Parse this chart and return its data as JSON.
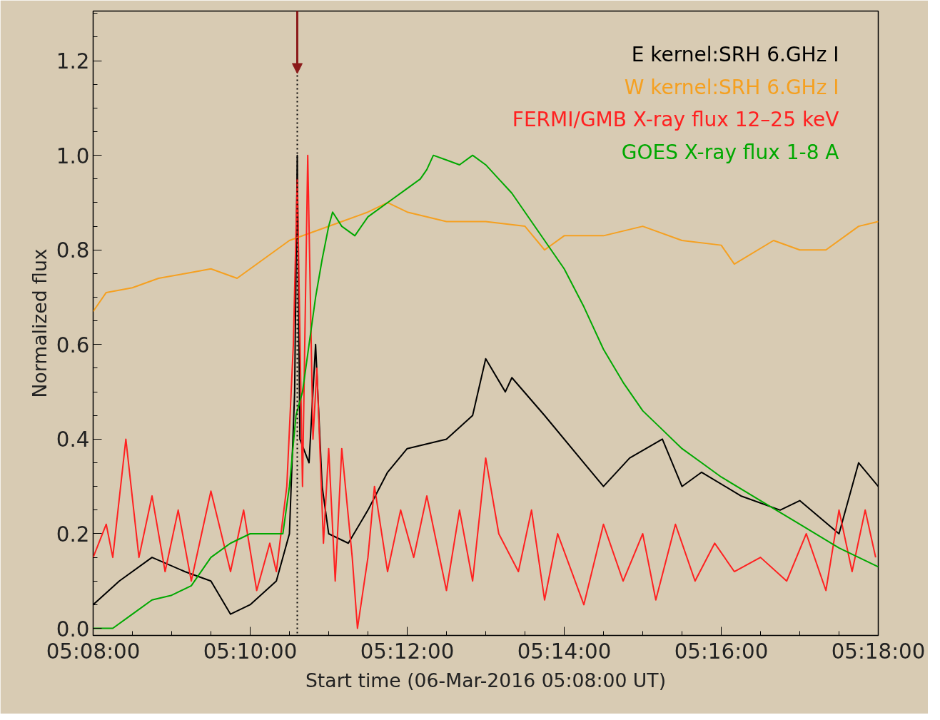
{
  "chart_data": {
    "type": "line",
    "xlabel": "Start time (06-Mar-2016 05:08:00 UT)",
    "ylabel": "Normalized flux",
    "xlim": [
      "2016-03-06T05:08:00",
      "2016-03-06T05:18:00"
    ],
    "xticks": [
      {
        "value": "2016-03-06T05:08:00",
        "label": "05:08:00"
      },
      {
        "value": "2016-03-06T05:10:00",
        "label": "05:10:00"
      },
      {
        "value": "2016-03-06T05:12:00",
        "label": "05:12:00"
      },
      {
        "value": "2016-03-06T05:14:00",
        "label": "05:14:00"
      },
      {
        "value": "2016-03-06T05:16:00",
        "label": "05:16:00"
      },
      {
        "value": "2016-03-06T05:18:00",
        "label": "05:18:00"
      }
    ],
    "ylim": [
      -0.015,
      1.305
    ],
    "yticks": [
      {
        "value": 0,
        "label": "0.0"
      },
      {
        "value": 0.2,
        "label": "0.2"
      },
      {
        "value": 0.4,
        "label": "0.4"
      },
      {
        "value": 0.6,
        "label": "0.6"
      },
      {
        "value": 0.8,
        "label": "0.8"
      },
      {
        "value": 1.0,
        "label": "1.0"
      },
      {
        "value": 1.2,
        "label": "1.2"
      }
    ],
    "legend": "top right",
    "grid": false,
    "line_style": "solid",
    "marker": "none",
    "ref_lines": [
      {
        "axis": "x",
        "value": "2016-03-06T05:10:36",
        "label": null,
        "color": "#000000",
        "line_style": "dotted"
      }
    ],
    "series": [
      {
        "name": "E kernel:SRH 6.GHz I",
        "color": "#000000",
        "x": [
          "2016-03-06T05:08:00",
          "2016-03-06T05:08:20",
          "2016-03-06T05:08:45",
          "2016-03-06T05:09:10",
          "2016-03-06T05:09:30",
          "2016-03-06T05:09:45",
          "2016-03-06T05:10:00",
          "2016-03-06T05:10:20",
          "2016-03-06T05:10:30",
          "2016-03-06T05:10:34",
          "2016-03-06T05:10:36",
          "2016-03-06T05:10:38",
          "2016-03-06T05:10:45",
          "2016-03-06T05:10:50",
          "2016-03-06T05:10:55",
          "2016-03-06T05:11:00",
          "2016-03-06T05:11:15",
          "2016-03-06T05:11:30",
          "2016-03-06T05:11:45",
          "2016-03-06T05:12:00",
          "2016-03-06T05:12:30",
          "2016-03-06T05:12:50",
          "2016-03-06T05:13:00",
          "2016-03-06T05:13:15",
          "2016-03-06T05:13:20",
          "2016-03-06T05:13:45",
          "2016-03-06T05:14:15",
          "2016-03-06T05:14:30",
          "2016-03-06T05:14:50",
          "2016-03-06T05:15:15",
          "2016-03-06T05:15:30",
          "2016-03-06T05:15:45",
          "2016-03-06T05:16:15",
          "2016-03-06T05:16:45",
          "2016-03-06T05:17:00",
          "2016-03-06T05:17:30",
          "2016-03-06T05:17:45",
          "2016-03-06T05:18:00"
        ],
        "values": [
          0.05,
          0.1,
          0.15,
          0.12,
          0.1,
          0.03,
          0.05,
          0.1,
          0.2,
          0.5,
          1.0,
          0.4,
          0.35,
          0.6,
          0.3,
          0.2,
          0.18,
          0.25,
          0.33,
          0.38,
          0.4,
          0.45,
          0.57,
          0.5,
          0.53,
          0.45,
          0.35,
          0.3,
          0.36,
          0.4,
          0.3,
          0.33,
          0.28,
          0.25,
          0.27,
          0.2,
          0.35,
          0.3
        ]
      },
      {
        "name": "W kernel:SRH 6.GHz I",
        "color": "#f5a020",
        "x": [
          "2016-03-06T05:08:00",
          "2016-03-06T05:08:10",
          "2016-03-06T05:08:30",
          "2016-03-06T05:08:50",
          "2016-03-06T05:09:10",
          "2016-03-06T05:09:30",
          "2016-03-06T05:09:50",
          "2016-03-06T05:10:10",
          "2016-03-06T05:10:30",
          "2016-03-06T05:10:50",
          "2016-03-06T05:11:10",
          "2016-03-06T05:11:30",
          "2016-03-06T05:11:45",
          "2016-03-06T05:12:00",
          "2016-03-06T05:12:30",
          "2016-03-06T05:13:00",
          "2016-03-06T05:13:30",
          "2016-03-06T05:13:45",
          "2016-03-06T05:14:00",
          "2016-03-06T05:14:30",
          "2016-03-06T05:15:00",
          "2016-03-06T05:15:30",
          "2016-03-06T05:16:00",
          "2016-03-06T05:16:10",
          "2016-03-06T05:16:40",
          "2016-03-06T05:17:00",
          "2016-03-06T05:17:20",
          "2016-03-06T05:17:45",
          "2016-03-06T05:18:00"
        ],
        "values": [
          0.67,
          0.71,
          0.72,
          0.74,
          0.75,
          0.76,
          0.74,
          0.78,
          0.82,
          0.84,
          0.86,
          0.88,
          0.9,
          0.88,
          0.86,
          0.86,
          0.85,
          0.8,
          0.83,
          0.83,
          0.85,
          0.82,
          0.81,
          0.77,
          0.82,
          0.8,
          0.8,
          0.85,
          0.86
        ]
      },
      {
        "name": "FERMI/GMB X-ray flux 12–25 keV",
        "color": "#ff2020",
        "x": [
          "2016-03-06T05:08:00",
          "2016-03-06T05:08:10",
          "2016-03-06T05:08:15",
          "2016-03-06T05:08:25",
          "2016-03-06T05:08:35",
          "2016-03-06T05:08:45",
          "2016-03-06T05:08:55",
          "2016-03-06T05:09:05",
          "2016-03-06T05:09:15",
          "2016-03-06T05:09:30",
          "2016-03-06T05:09:45",
          "2016-03-06T05:09:55",
          "2016-03-06T05:10:05",
          "2016-03-06T05:10:15",
          "2016-03-06T05:10:20",
          "2016-03-06T05:10:28",
          "2016-03-06T05:10:33",
          "2016-03-06T05:10:36",
          "2016-03-06T05:10:40",
          "2016-03-06T05:10:44",
          "2016-03-06T05:10:48",
          "2016-03-06T05:10:51",
          "2016-03-06T05:10:56",
          "2016-03-06T05:11:00",
          "2016-03-06T05:11:05",
          "2016-03-06T05:11:10",
          "2016-03-06T05:11:18",
          "2016-03-06T05:11:22",
          "2016-03-06T05:11:30",
          "2016-03-06T05:11:35",
          "2016-03-06T05:11:45",
          "2016-03-06T05:11:55",
          "2016-03-06T05:12:05",
          "2016-03-06T05:12:15",
          "2016-03-06T05:12:30",
          "2016-03-06T05:12:40",
          "2016-03-06T05:12:50",
          "2016-03-06T05:13:00",
          "2016-03-06T05:13:10",
          "2016-03-06T05:13:25",
          "2016-03-06T05:13:35",
          "2016-03-06T05:13:45",
          "2016-03-06T05:13:55",
          "2016-03-06T05:14:15",
          "2016-03-06T05:14:30",
          "2016-03-06T05:14:45",
          "2016-03-06T05:15:00",
          "2016-03-06T05:15:10",
          "2016-03-06T05:15:25",
          "2016-03-06T05:15:40",
          "2016-03-06T05:15:55",
          "2016-03-06T05:16:10",
          "2016-03-06T05:16:30",
          "2016-03-06T05:16:50",
          "2016-03-06T05:17:05",
          "2016-03-06T05:17:20",
          "2016-03-06T05:17:30",
          "2016-03-06T05:17:40",
          "2016-03-06T05:17:50",
          "2016-03-06T05:17:58"
        ],
        "values": [
          0.15,
          0.22,
          0.15,
          0.4,
          0.15,
          0.28,
          0.12,
          0.25,
          0.1,
          0.29,
          0.12,
          0.25,
          0.08,
          0.18,
          0.12,
          0.3,
          0.6,
          0.95,
          0.3,
          1.0,
          0.4,
          0.55,
          0.18,
          0.38,
          0.1,
          0.38,
          0.15,
          0.0,
          0.15,
          0.3,
          0.12,
          0.25,
          0.15,
          0.28,
          0.08,
          0.25,
          0.1,
          0.36,
          0.2,
          0.12,
          0.25,
          0.06,
          0.2,
          0.05,
          0.22,
          0.1,
          0.2,
          0.06,
          0.22,
          0.1,
          0.18,
          0.12,
          0.15,
          0.1,
          0.2,
          0.08,
          0.25,
          0.12,
          0.25,
          0.15
        ]
      },
      {
        "name": "GOES X-ray flux 1-8 A",
        "color": "#00a800",
        "x": [
          "2016-03-06T05:08:00",
          "2016-03-06T05:08:15",
          "2016-03-06T05:08:30",
          "2016-03-06T05:08:45",
          "2016-03-06T05:09:00",
          "2016-03-06T05:09:15",
          "2016-03-06T05:09:30",
          "2016-03-06T05:09:45",
          "2016-03-06T05:10:00",
          "2016-03-06T05:10:15",
          "2016-03-06T05:10:25",
          "2016-03-06T05:10:30",
          "2016-03-06T05:10:35",
          "2016-03-06T05:10:40",
          "2016-03-06T05:10:45",
          "2016-03-06T05:10:50",
          "2016-03-06T05:10:55",
          "2016-03-06T05:11:00",
          "2016-03-06T05:11:03",
          "2016-03-06T05:11:10",
          "2016-03-06T05:11:20",
          "2016-03-06T05:11:30",
          "2016-03-06T05:11:45",
          "2016-03-06T05:12:00",
          "2016-03-06T05:12:10",
          "2016-03-06T05:12:15",
          "2016-03-06T05:12:20",
          "2016-03-06T05:12:30",
          "2016-03-06T05:12:40",
          "2016-03-06T05:12:50",
          "2016-03-06T05:13:00",
          "2016-03-06T05:13:10",
          "2016-03-06T05:13:20",
          "2016-03-06T05:13:30",
          "2016-03-06T05:13:45",
          "2016-03-06T05:14:00",
          "2016-03-06T05:14:15",
          "2016-03-06T05:14:30",
          "2016-03-06T05:14:45",
          "2016-03-06T05:15:00",
          "2016-03-06T05:15:15",
          "2016-03-06T05:15:30",
          "2016-03-06T05:15:45",
          "2016-03-06T05:16:00",
          "2016-03-06T05:16:30",
          "2016-03-06T05:17:00",
          "2016-03-06T05:17:30",
          "2016-03-06T05:18:00"
        ],
        "values": [
          0.0,
          0.0,
          0.03,
          0.06,
          0.07,
          0.09,
          0.15,
          0.18,
          0.2,
          0.2,
          0.2,
          0.3,
          0.45,
          0.5,
          0.6,
          0.7,
          0.78,
          0.85,
          0.88,
          0.85,
          0.83,
          0.87,
          0.9,
          0.93,
          0.95,
          0.97,
          1.0,
          0.99,
          0.98,
          1.0,
          0.98,
          0.95,
          0.92,
          0.88,
          0.82,
          0.76,
          0.68,
          0.59,
          0.52,
          0.46,
          0.42,
          0.38,
          0.35,
          0.32,
          0.27,
          0.22,
          0.17,
          0.13
        ]
      }
    ]
  }
}
